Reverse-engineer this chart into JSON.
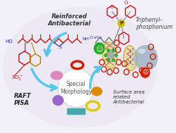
{
  "bg_color": "#f2f0f8",
  "bg_ellipse_color": "#ece8f4",
  "labels": {
    "reinforced": "Reinforced\nAntibacterial",
    "triphenyl": "Triphenyl-\nphosphonium",
    "raft": "RAFT\nPISA",
    "special": "Special\nMorphology",
    "surface": "Surface area\nrelated\nAntibacterial"
  },
  "arrow_color": "#55c8e8",
  "shape_colors": {
    "red_torus": "#cc2200",
    "pink_ellipse": "#dd88bb",
    "purple_blob": "#9966cc",
    "orange_ellipse": "#dd8800",
    "yellow_torus": "#ddcc00",
    "teal_rect": "#44aaaa"
  },
  "bacteria_color": "#e8d89a",
  "bacteria_border": "#ccaa44",
  "happy_color": "#22aa22",
  "sad_color": "#cc2200",
  "sphere_color": "#aabbcc",
  "polymer_red": "#cc1111",
  "polymer_blue": "#2222aa",
  "polymer_gold": "#aa8800",
  "phosphonium_red": "#cc1111",
  "phosphonium_gray": "#888888",
  "phosphonium_yellow": "#ccbb00"
}
